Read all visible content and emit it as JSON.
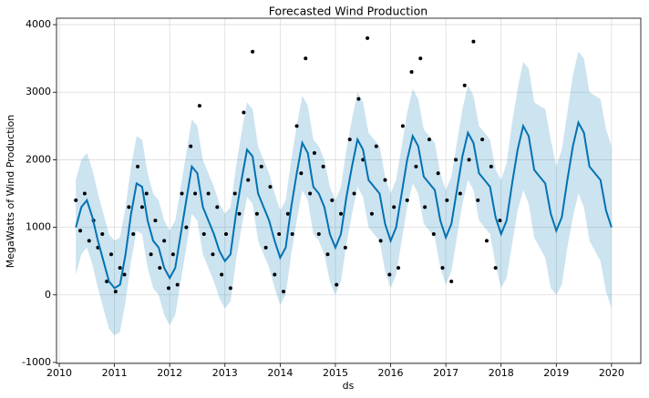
{
  "chart_data": {
    "type": "forecast",
    "title": "Forecasted Wind Production",
    "xlabel": "ds",
    "ylabel": "MegaWatts of Wind Production",
    "xlim": [
      2009.95,
      2020.53
    ],
    "ylim": [
      -1014,
      4095
    ],
    "xticks": [
      2010,
      2011,
      2012,
      2013,
      2014,
      2015,
      2016,
      2017,
      2018,
      2019,
      2020
    ],
    "yticks": [
      -1000,
      0,
      1000,
      2000,
      3000,
      4000
    ],
    "grid": true,
    "x": [
      2010.3,
      2010.4,
      2010.5,
      2010.6,
      2010.7,
      2010.8,
      2010.9,
      2011.0,
      2011.1,
      2011.2,
      2011.3,
      2011.4,
      2011.5,
      2011.6,
      2011.7,
      2011.8,
      2011.9,
      2012.0,
      2012.1,
      2012.2,
      2012.3,
      2012.4,
      2012.5,
      2012.6,
      2012.7,
      2012.8,
      2012.9,
      2013.0,
      2013.1,
      2013.2,
      2013.3,
      2013.4,
      2013.5,
      2013.6,
      2013.7,
      2013.8,
      2013.9,
      2014.0,
      2014.1,
      2014.2,
      2014.3,
      2014.4,
      2014.5,
      2014.6,
      2014.7,
      2014.8,
      2014.9,
      2015.0,
      2015.1,
      2015.2,
      2015.3,
      2015.4,
      2015.5,
      2015.6,
      2015.7,
      2015.8,
      2015.9,
      2016.0,
      2016.1,
      2016.2,
      2016.3,
      2016.4,
      2016.5,
      2016.6,
      2016.7,
      2016.8,
      2016.9,
      2017.0,
      2017.1,
      2017.2,
      2017.3,
      2017.4,
      2017.5,
      2017.6,
      2017.7,
      2017.8,
      2017.9,
      2018.0,
      2018.1,
      2018.2,
      2018.3,
      2018.4,
      2018.5,
      2018.6,
      2018.7,
      2018.8,
      2018.9,
      2019.0,
      2019.1,
      2019.2,
      2019.3,
      2019.4,
      2019.5,
      2019.6,
      2019.7,
      2019.8,
      2019.9,
      2020.0
    ],
    "series": [
      {
        "color": "#0072B2",
        "values": [
          1000,
          1300,
          1400,
          1150,
          800,
          500,
          200,
          100,
          150,
          600,
          1200,
          1650,
          1600,
          1100,
          800,
          700,
          400,
          250,
          400,
          900,
          1400,
          1900,
          1800,
          1300,
          1100,
          900,
          650,
          500,
          600,
          1200,
          1700,
          2150,
          2050,
          1500,
          1300,
          1100,
          800,
          550,
          700,
          1300,
          1800,
          2250,
          2100,
          1600,
          1500,
          1300,
          900,
          700,
          900,
          1450,
          1900,
          2300,
          2150,
          1700,
          1600,
          1500,
          1050,
          800,
          1000,
          1500,
          2000,
          2350,
          2200,
          1750,
          1650,
          1550,
          1100,
          850,
          1050,
          1550,
          2050,
          2400,
          2250,
          1800,
          1700,
          1600,
          1150,
          900,
          1100,
          1650,
          2150,
          2500,
          2350,
          1850,
          1750,
          1650,
          1200,
          950,
          1150,
          1700,
          2200,
          2550,
          2400,
          1900,
          1800,
          1700,
          1250,
          1000
        ]
      }
    ],
    "band": {
      "color": "#0072B2",
      "lower": [
        300,
        600,
        700,
        450,
        100,
        -200,
        -500,
        -600,
        -550,
        -100,
        500,
        950,
        900,
        400,
        100,
        0,
        -300,
        -450,
        -300,
        200,
        700,
        1200,
        1100,
        600,
        400,
        200,
        -50,
        -200,
        -100,
        500,
        1000,
        1450,
        1350,
        800,
        600,
        400,
        100,
        -150,
        0,
        600,
        1100,
        1550,
        1400,
        900,
        800,
        600,
        200,
        0,
        200,
        750,
        1200,
        1600,
        1450,
        1000,
        900,
        800,
        350,
        100,
        300,
        800,
        1300,
        1650,
        1500,
        1050,
        950,
        850,
        400,
        150,
        350,
        850,
        1350,
        1700,
        1550,
        1100,
        1000,
        900,
        450,
        100,
        250,
        750,
        1250,
        1550,
        1350,
        850,
        700,
        550,
        100,
        0,
        150,
        700,
        1150,
        1500,
        1300,
        800,
        650,
        500,
        50,
        -200
      ],
      "upper": [
        1700,
        2000,
        2100,
        1850,
        1500,
        1200,
        900,
        800,
        850,
        1300,
        1900,
        2350,
        2300,
        1800,
        1500,
        1400,
        1100,
        950,
        1100,
        1600,
        2100,
        2600,
        2500,
        2000,
        1800,
        1600,
        1350,
        1200,
        1300,
        1900,
        2400,
        2850,
        2750,
        2200,
        2000,
        1800,
        1500,
        1250,
        1400,
        2000,
        2500,
        2950,
        2800,
        2300,
        2200,
        2000,
        1600,
        1400,
        1600,
        2150,
        2600,
        3000,
        2850,
        2400,
        2300,
        2200,
        1750,
        1500,
        1700,
        2200,
        2700,
        3050,
        2900,
        2450,
        2350,
        2250,
        1800,
        1550,
        1750,
        2250,
        2750,
        3100,
        2950,
        2500,
        2400,
        2300,
        1850,
        1700,
        1950,
        2550,
        3050,
        3450,
        3350,
        2850,
        2800,
        2750,
        2300,
        1900,
        2150,
        2700,
        3250,
        3600,
        3500,
        3000,
        2950,
        2900,
        2450,
        2200
      ]
    },
    "points": {
      "color": "#000000",
      "x": [
        2010.3,
        2010.38,
        2010.46,
        2010.54,
        2010.62,
        2010.7,
        2010.78,
        2010.86,
        2010.94,
        2011.02,
        2011.1,
        2011.18,
        2011.26,
        2011.34,
        2011.42,
        2011.5,
        2011.58,
        2011.66,
        2011.74,
        2011.82,
        2011.9,
        2011.98,
        2012.06,
        2012.14,
        2012.22,
        2012.3,
        2012.38,
        2012.46,
        2012.54,
        2012.62,
        2012.7,
        2012.78,
        2012.86,
        2012.94,
        2013.02,
        2013.1,
        2013.18,
        2013.26,
        2013.34,
        2013.42,
        2013.5,
        2013.58,
        2013.66,
        2013.74,
        2013.82,
        2013.9,
        2013.98,
        2014.06,
        2014.14,
        2014.22,
        2014.3,
        2014.38,
        2014.46,
        2014.54,
        2014.62,
        2014.7,
        2014.78,
        2014.86,
        2014.94,
        2015.02,
        2015.1,
        2015.18,
        2015.26,
        2015.34,
        2015.42,
        2015.5,
        2015.58,
        2015.66,
        2015.74,
        2015.82,
        2015.9,
        2015.98,
        2016.06,
        2016.14,
        2016.22,
        2016.3,
        2016.38,
        2016.46,
        2016.54,
        2016.62,
        2016.7,
        2016.78,
        2016.86,
        2016.94,
        2017.02,
        2017.1,
        2017.18,
        2017.26,
        2017.34,
        2017.42,
        2017.5,
        2017.58,
        2017.66,
        2017.74,
        2017.82,
        2017.9,
        2017.98
      ],
      "values": [
        1400,
        950,
        1500,
        800,
        1100,
        700,
        900,
        200,
        600,
        50,
        400,
        300,
        1300,
        900,
        1900,
        1300,
        1500,
        600,
        1100,
        400,
        800,
        100,
        600,
        150,
        1500,
        1000,
        2200,
        1500,
        2800,
        900,
        1500,
        600,
        1300,
        300,
        900,
        100,
        1500,
        1200,
        2700,
        1700,
        3600,
        1200,
        1900,
        700,
        1600,
        300,
        900,
        50,
        1200,
        900,
        2500,
        1800,
        3500,
        1500,
        2100,
        900,
        1900,
        600,
        1400,
        150,
        1200,
        700,
        2300,
        1500,
        2900,
        2000,
        3800,
        1200,
        2200,
        800,
        1700,
        300,
        1300,
        400,
        2500,
        1400,
        3300,
        1900,
        3500,
        1300,
        2300,
        900,
        1800,
        400,
        1400,
        200,
        2000,
        1500,
        3100,
        2000,
        3750,
        1400,
        2300,
        800,
        1900,
        400,
        1100
      ]
    }
  }
}
